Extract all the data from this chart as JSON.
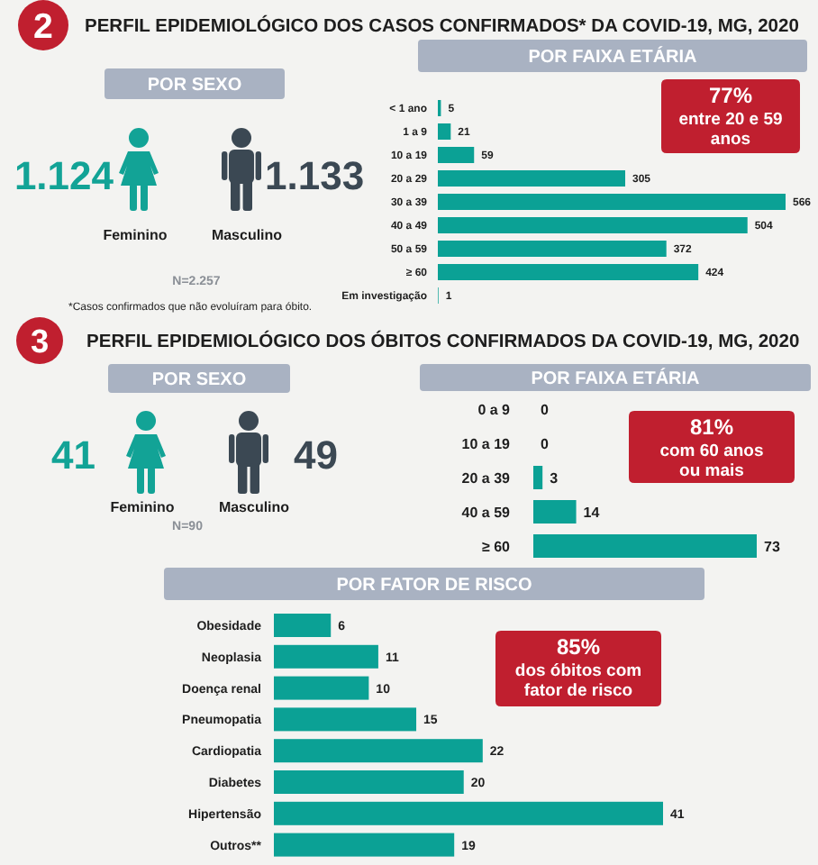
{
  "chart_data": [
    {
      "type": "other",
      "title": "PERFIL EPIDEMIOLÓGICO DOS CASOS CONFIRMADOS* DA COVID-19, MG, 2020",
      "subtitle": "POR SEXO",
      "categories": [
        "Feminino",
        "Masculino"
      ],
      "values": [
        1124,
        1133
      ],
      "value_labels": [
        "1.124",
        "1.133"
      ],
      "colors": [
        "#12a396",
        "#3b4853"
      ],
      "annotations": [
        "2",
        "N=2.257",
        "*Casos confirmados que não evoluíram para óbito."
      ]
    },
    {
      "type": "bar",
      "orientation": "horizontal",
      "title": "POR FAIXA ETÁRIA",
      "categories": [
        "< 1 ano",
        "1 a 9",
        "10 a 19",
        "20 a 29",
        "30 a 39",
        "40 a 49",
        "50 a 59",
        "≥ 60",
        "Em investigação"
      ],
      "values": [
        5,
        21,
        59,
        305,
        566,
        504,
        372,
        424,
        1
      ],
      "color": "#0ba195",
      "data_labels": true,
      "annotations": [
        "77% entre 20 e 59 anos"
      ]
    },
    {
      "type": "other",
      "title": "PERFIL EPIDEMIOLÓGICO DOS ÓBITOS CONFIRMADOS DA COVID-19, MG, 2020",
      "subtitle": "POR SEXO",
      "categories": [
        "Feminino",
        "Masculino"
      ],
      "values": [
        41,
        49
      ],
      "data_labels": true,
      "colors": [
        "#12a396",
        "#3b4853"
      ],
      "annotations": [
        "3",
        "N=90"
      ]
    },
    {
      "type": "bar",
      "orientation": "horizontal",
      "title": "POR FAIXA ETÁRIA",
      "categories": [
        "0 a 9",
        "10 a 19",
        "20 a 39",
        "40 a 59",
        "≥ 60"
      ],
      "values": [
        0,
        0,
        3,
        14,
        73
      ],
      "color": "#0ba195",
      "data_labels": true,
      "annotations": [
        "81% com 60 anos ou mais"
      ]
    },
    {
      "type": "bar",
      "orientation": "horizontal",
      "title": "POR FATOR DE RISCO",
      "categories": [
        "Obesidade",
        "Neoplasia",
        "Doença renal",
        "Pneumopatia",
        "Cardiopatia",
        "Diabetes",
        "Hipertensão",
        "Outros**"
      ],
      "values": [
        6,
        11,
        10,
        15,
        22,
        20,
        41,
        19
      ],
      "color": "#0ba195",
      "data_labels": true,
      "annotations": [
        "85% dos óbitos com fator de risco"
      ]
    }
  ]
}
